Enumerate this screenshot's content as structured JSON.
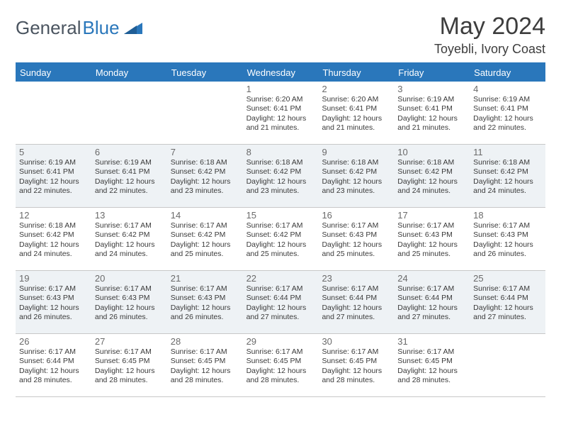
{
  "brand": {
    "part1": "General",
    "part2": "Blue"
  },
  "title": {
    "month": "May 2024",
    "location": "Toyebli, Ivory Coast"
  },
  "colors": {
    "accent": "#2a77bb",
    "altRow": "#eef2f5",
    "text": "#3a3a3a",
    "border": "#c8c8c8",
    "headText": "#ffffff"
  },
  "dayNames": [
    "Sunday",
    "Monday",
    "Tuesday",
    "Wednesday",
    "Thursday",
    "Friday",
    "Saturday"
  ],
  "weeks": [
    {
      "alt": false,
      "days": [
        {
          "n": "",
          "sr": "",
          "ss": "",
          "dl": ""
        },
        {
          "n": "",
          "sr": "",
          "ss": "",
          "dl": ""
        },
        {
          "n": "",
          "sr": "",
          "ss": "",
          "dl": ""
        },
        {
          "n": "1",
          "sr": "Sunrise: 6:20 AM",
          "ss": "Sunset: 6:41 PM",
          "dl": "Daylight: 12 hours and 21 minutes."
        },
        {
          "n": "2",
          "sr": "Sunrise: 6:20 AM",
          "ss": "Sunset: 6:41 PM",
          "dl": "Daylight: 12 hours and 21 minutes."
        },
        {
          "n": "3",
          "sr": "Sunrise: 6:19 AM",
          "ss": "Sunset: 6:41 PM",
          "dl": "Daylight: 12 hours and 21 minutes."
        },
        {
          "n": "4",
          "sr": "Sunrise: 6:19 AM",
          "ss": "Sunset: 6:41 PM",
          "dl": "Daylight: 12 hours and 22 minutes."
        }
      ]
    },
    {
      "alt": true,
      "days": [
        {
          "n": "5",
          "sr": "Sunrise: 6:19 AM",
          "ss": "Sunset: 6:41 PM",
          "dl": "Daylight: 12 hours and 22 minutes."
        },
        {
          "n": "6",
          "sr": "Sunrise: 6:19 AM",
          "ss": "Sunset: 6:41 PM",
          "dl": "Daylight: 12 hours and 22 minutes."
        },
        {
          "n": "7",
          "sr": "Sunrise: 6:18 AM",
          "ss": "Sunset: 6:42 PM",
          "dl": "Daylight: 12 hours and 23 minutes."
        },
        {
          "n": "8",
          "sr": "Sunrise: 6:18 AM",
          "ss": "Sunset: 6:42 PM",
          "dl": "Daylight: 12 hours and 23 minutes."
        },
        {
          "n": "9",
          "sr": "Sunrise: 6:18 AM",
          "ss": "Sunset: 6:42 PM",
          "dl": "Daylight: 12 hours and 23 minutes."
        },
        {
          "n": "10",
          "sr": "Sunrise: 6:18 AM",
          "ss": "Sunset: 6:42 PM",
          "dl": "Daylight: 12 hours and 24 minutes."
        },
        {
          "n": "11",
          "sr": "Sunrise: 6:18 AM",
          "ss": "Sunset: 6:42 PM",
          "dl": "Daylight: 12 hours and 24 minutes."
        }
      ]
    },
    {
      "alt": false,
      "days": [
        {
          "n": "12",
          "sr": "Sunrise: 6:18 AM",
          "ss": "Sunset: 6:42 PM",
          "dl": "Daylight: 12 hours and 24 minutes."
        },
        {
          "n": "13",
          "sr": "Sunrise: 6:17 AM",
          "ss": "Sunset: 6:42 PM",
          "dl": "Daylight: 12 hours and 24 minutes."
        },
        {
          "n": "14",
          "sr": "Sunrise: 6:17 AM",
          "ss": "Sunset: 6:42 PM",
          "dl": "Daylight: 12 hours and 25 minutes."
        },
        {
          "n": "15",
          "sr": "Sunrise: 6:17 AM",
          "ss": "Sunset: 6:42 PM",
          "dl": "Daylight: 12 hours and 25 minutes."
        },
        {
          "n": "16",
          "sr": "Sunrise: 6:17 AM",
          "ss": "Sunset: 6:43 PM",
          "dl": "Daylight: 12 hours and 25 minutes."
        },
        {
          "n": "17",
          "sr": "Sunrise: 6:17 AM",
          "ss": "Sunset: 6:43 PM",
          "dl": "Daylight: 12 hours and 25 minutes."
        },
        {
          "n": "18",
          "sr": "Sunrise: 6:17 AM",
          "ss": "Sunset: 6:43 PM",
          "dl": "Daylight: 12 hours and 26 minutes."
        }
      ]
    },
    {
      "alt": true,
      "days": [
        {
          "n": "19",
          "sr": "Sunrise: 6:17 AM",
          "ss": "Sunset: 6:43 PM",
          "dl": "Daylight: 12 hours and 26 minutes."
        },
        {
          "n": "20",
          "sr": "Sunrise: 6:17 AM",
          "ss": "Sunset: 6:43 PM",
          "dl": "Daylight: 12 hours and 26 minutes."
        },
        {
          "n": "21",
          "sr": "Sunrise: 6:17 AM",
          "ss": "Sunset: 6:43 PM",
          "dl": "Daylight: 12 hours and 26 minutes."
        },
        {
          "n": "22",
          "sr": "Sunrise: 6:17 AM",
          "ss": "Sunset: 6:44 PM",
          "dl": "Daylight: 12 hours and 27 minutes."
        },
        {
          "n": "23",
          "sr": "Sunrise: 6:17 AM",
          "ss": "Sunset: 6:44 PM",
          "dl": "Daylight: 12 hours and 27 minutes."
        },
        {
          "n": "24",
          "sr": "Sunrise: 6:17 AM",
          "ss": "Sunset: 6:44 PM",
          "dl": "Daylight: 12 hours and 27 minutes."
        },
        {
          "n": "25",
          "sr": "Sunrise: 6:17 AM",
          "ss": "Sunset: 6:44 PM",
          "dl": "Daylight: 12 hours and 27 minutes."
        }
      ]
    },
    {
      "alt": false,
      "days": [
        {
          "n": "26",
          "sr": "Sunrise: 6:17 AM",
          "ss": "Sunset: 6:44 PM",
          "dl": "Daylight: 12 hours and 28 minutes."
        },
        {
          "n": "27",
          "sr": "Sunrise: 6:17 AM",
          "ss": "Sunset: 6:45 PM",
          "dl": "Daylight: 12 hours and 28 minutes."
        },
        {
          "n": "28",
          "sr": "Sunrise: 6:17 AM",
          "ss": "Sunset: 6:45 PM",
          "dl": "Daylight: 12 hours and 28 minutes."
        },
        {
          "n": "29",
          "sr": "Sunrise: 6:17 AM",
          "ss": "Sunset: 6:45 PM",
          "dl": "Daylight: 12 hours and 28 minutes."
        },
        {
          "n": "30",
          "sr": "Sunrise: 6:17 AM",
          "ss": "Sunset: 6:45 PM",
          "dl": "Daylight: 12 hours and 28 minutes."
        },
        {
          "n": "31",
          "sr": "Sunrise: 6:17 AM",
          "ss": "Sunset: 6:45 PM",
          "dl": "Daylight: 12 hours and 28 minutes."
        },
        {
          "n": "",
          "sr": "",
          "ss": "",
          "dl": ""
        }
      ]
    }
  ]
}
